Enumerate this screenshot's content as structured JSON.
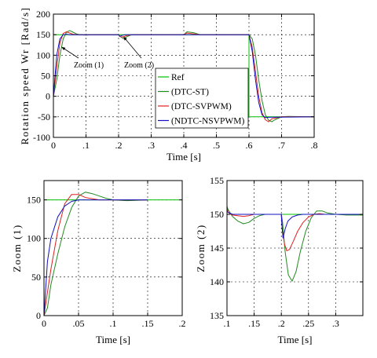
{
  "chart_data": [
    {
      "id": "main",
      "type": "line",
      "xlabel": "Time [s]",
      "ylabel": "Rotation speed Wr [Rad/s]",
      "xlim": [
        0,
        0.8
      ],
      "ylim": [
        -100,
        200
      ],
      "xticks": [
        0,
        0.1,
        0.2,
        0.3,
        0.4,
        0.5,
        0.6,
        0.7,
        0.8
      ],
      "yticks": [
        -100,
        -50,
        0,
        50,
        100,
        150,
        200
      ],
      "grid": true,
      "legend_position": "bottom-center",
      "annotations": [
        {
          "text": "Zoom (1)",
          "points_to": [
            0.025,
            120
          ]
        },
        {
          "text": "Zoom (2)",
          "points_to": [
            0.215,
            145
          ]
        }
      ],
      "series": [
        {
          "name": "Ref",
          "color": "#00c000",
          "x": [
            0,
            0.6,
            0.6,
            0.8
          ],
          "y": [
            150,
            150,
            -50,
            -50
          ]
        },
        {
          "name": "(DTC-ST)",
          "color": "#208a20",
          "x": [
            0,
            0.01,
            0.02,
            0.03,
            0.04,
            0.05,
            0.06,
            0.07,
            0.08,
            0.1,
            0.12,
            0.2,
            0.205,
            0.215,
            0.225,
            0.24,
            0.26,
            0.3,
            0.4,
            0.41,
            0.43,
            0.45,
            0.5,
            0.6,
            0.61,
            0.62,
            0.63,
            0.64,
            0.65,
            0.66,
            0.67,
            0.68,
            0.7,
            0.72,
            0.8
          ],
          "y": [
            0,
            40,
            100,
            140,
            156,
            160,
            156,
            152,
            150,
            149,
            150,
            150,
            146,
            140,
            145,
            150,
            150,
            150,
            150,
            157,
            155,
            150,
            150,
            150,
            140,
            100,
            40,
            -10,
            -45,
            -58,
            -62,
            -57,
            -50,
            -49,
            -50
          ]
        },
        {
          "name": "(DTC-SVPWM)",
          "color": "#e02020",
          "x": [
            0,
            0.01,
            0.02,
            0.03,
            0.04,
            0.05,
            0.06,
            0.08,
            0.1,
            0.2,
            0.205,
            0.215,
            0.225,
            0.24,
            0.3,
            0.4,
            0.41,
            0.43,
            0.45,
            0.5,
            0.6,
            0.61,
            0.62,
            0.63,
            0.64,
            0.65,
            0.66,
            0.67,
            0.7,
            0.8
          ],
          "y": [
            0,
            70,
            130,
            153,
            157,
            154,
            151,
            150,
            150,
            150,
            145,
            144.5,
            148,
            150,
            150,
            150,
            154,
            152,
            150,
            150,
            150,
            120,
            60,
            0,
            -40,
            -57,
            -62,
            -55,
            -50,
            -50
          ]
        },
        {
          "name": "(NDTC-NSVPWM)",
          "color": "#1010c0",
          "x": [
            0,
            0.01,
            0.02,
            0.03,
            0.04,
            0.05,
            0.06,
            0.1,
            0.2,
            0.203,
            0.21,
            0.22,
            0.3,
            0.6,
            0.61,
            0.62,
            0.63,
            0.64,
            0.65,
            0.66,
            0.8
          ],
          "y": [
            0,
            100,
            140,
            150,
            151,
            150,
            150,
            150,
            150,
            146,
            148,
            150,
            150,
            150,
            110,
            40,
            -15,
            -45,
            -52,
            -51,
            -50
          ]
        }
      ]
    },
    {
      "id": "zoom1",
      "type": "line",
      "xlabel": "Time [s]",
      "ylabel": "Zoom (1)",
      "xlim": [
        0,
        0.2
      ],
      "ylim": [
        0,
        175
      ],
      "xticks": [
        0,
        0.05,
        0.1,
        0.15,
        0.2
      ],
      "yticks": [
        0,
        50,
        100,
        150
      ],
      "grid": true,
      "series": [
        {
          "name": "Ref",
          "color": "#00c000",
          "x": [
            0,
            0.2
          ],
          "y": [
            150,
            150
          ]
        },
        {
          "name": "(DTC-ST)",
          "color": "#208a20",
          "x": [
            0,
            0.005,
            0.01,
            0.02,
            0.03,
            0.04,
            0.05,
            0.06,
            0.07,
            0.08,
            0.09,
            0.1,
            0.12,
            0.15
          ],
          "y": [
            0,
            10,
            40,
            80,
            115,
            140,
            155,
            160,
            158,
            155,
            152,
            150,
            149,
            150
          ]
        },
        {
          "name": "(DTC-SVPWM)",
          "color": "#e02020",
          "x": [
            0,
            0.005,
            0.01,
            0.02,
            0.03,
            0.04,
            0.05,
            0.06,
            0.08,
            0.1,
            0.15
          ],
          "y": [
            0,
            30,
            60,
            110,
            145,
            157,
            157,
            153,
            150,
            150,
            150
          ]
        },
        {
          "name": "(NDTC-NSVPWM)",
          "color": "#1010c0",
          "x": [
            0,
            0.005,
            0.01,
            0.02,
            0.03,
            0.04,
            0.05,
            0.06,
            0.1,
            0.15
          ],
          "y": [
            0,
            70,
            100,
            128,
            142,
            148,
            150,
            150,
            150,
            150
          ]
        }
      ]
    },
    {
      "id": "zoom2",
      "type": "line",
      "xlabel": "Time [s]",
      "ylabel": "Zoom (2)",
      "xlim": [
        0.1,
        0.35
      ],
      "ylim": [
        135,
        155
      ],
      "xticks": [
        0.1,
        0.15,
        0.2,
        0.25,
        0.3
      ],
      "yticks": [
        135,
        140,
        145,
        150,
        155
      ],
      "grid": true,
      "series": [
        {
          "name": "Ref",
          "color": "#00c000",
          "x": [
            0.1,
            0.35
          ],
          "y": [
            150,
            150
          ]
        },
        {
          "name": "(DTC-ST)",
          "color": "#208a20",
          "x": [
            0.1,
            0.102,
            0.11,
            0.12,
            0.13,
            0.14,
            0.15,
            0.16,
            0.17,
            0.18,
            0.2,
            0.202,
            0.207,
            0.213,
            0.22,
            0.227,
            0.235,
            0.245,
            0.255,
            0.265,
            0.275,
            0.285,
            0.3,
            0.32,
            0.35
          ],
          "y": [
            151.2,
            150.7,
            149.7,
            149.0,
            148.6,
            148.8,
            149.4,
            149.8,
            150.0,
            150.0,
            150.0,
            149.0,
            144.5,
            141.0,
            140.1,
            141.5,
            144.5,
            147.5,
            149.5,
            150.5,
            150.5,
            150.2,
            150.0,
            149.9,
            149.9
          ]
        },
        {
          "name": "(DTC-SVPWM)",
          "color": "#e02020",
          "x": [
            0.1,
            0.102,
            0.11,
            0.12,
            0.13,
            0.14,
            0.15,
            0.16,
            0.2,
            0.202,
            0.206,
            0.21,
            0.215,
            0.222,
            0.23,
            0.24,
            0.25,
            0.26,
            0.27,
            0.28,
            0.3,
            0.35
          ],
          "y": [
            151.0,
            150.3,
            149.9,
            149.8,
            149.7,
            149.8,
            150.0,
            150.0,
            150.0,
            147.5,
            145.5,
            144.6,
            144.8,
            146.0,
            147.5,
            148.8,
            149.6,
            150.0,
            150.1,
            150.0,
            150.0,
            150.0
          ]
        },
        {
          "name": "(NDTC-NSVPWM)",
          "color": "#1010c0",
          "x": [
            0.1,
            0.105,
            0.11,
            0.12,
            0.2,
            0.201,
            0.203,
            0.207,
            0.212,
            0.22,
            0.23,
            0.24,
            0.3,
            0.35
          ],
          "y": [
            150.4,
            150.2,
            150.0,
            150.0,
            150.0,
            148.5,
            146.5,
            147.8,
            149.0,
            149.6,
            149.9,
            150.0,
            150.0,
            150.0
          ]
        }
      ]
    }
  ]
}
